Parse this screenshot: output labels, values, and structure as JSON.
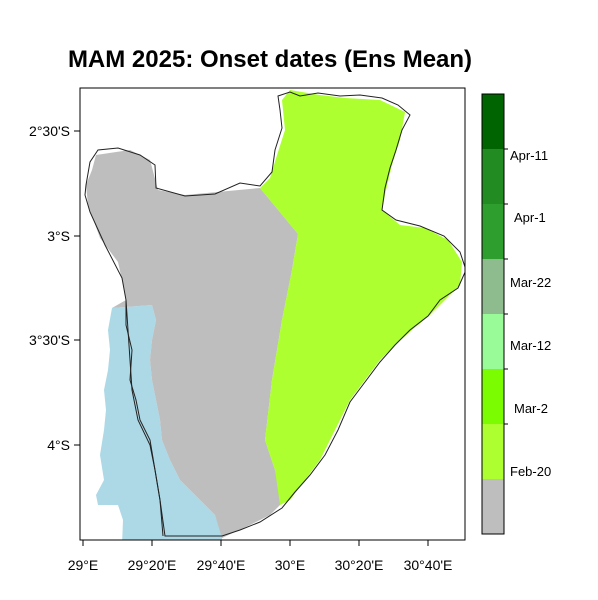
{
  "map": {
    "title": "MAM 2025: Onset dates  (Ens Mean)",
    "lat_labels": [
      "2°30'S",
      "3°S",
      "3°30'S",
      "4°S"
    ],
    "lon_labels": [
      "29°E",
      "29°20'E",
      "29°40'E",
      "30°E",
      "30°20'E",
      "30°40'E"
    ],
    "lon_range": [
      29.0,
      30.55
    ],
    "lat_range": [
      -4.45,
      -2.2
    ]
  },
  "legend": {
    "labels": [
      "Apr-11",
      "Apr-1",
      "Mar-22",
      "Mar-12",
      "Mar-2",
      "Feb-20"
    ],
    "colors": [
      "#006400",
      "#228B22",
      "#2E9E2E",
      "#8FBC8F",
      "#98FB98",
      "#7CFC00",
      "#ADFF2F",
      "#BEBEBE"
    ]
  },
  "regions": [
    {
      "name": "lake-tanganyika",
      "color": "#ADD8E6"
    },
    {
      "name": "feb-20-or-earlier",
      "color": "#BEBEBE"
    },
    {
      "name": "mar-2",
      "color": "#ADFF2F"
    }
  ]
}
